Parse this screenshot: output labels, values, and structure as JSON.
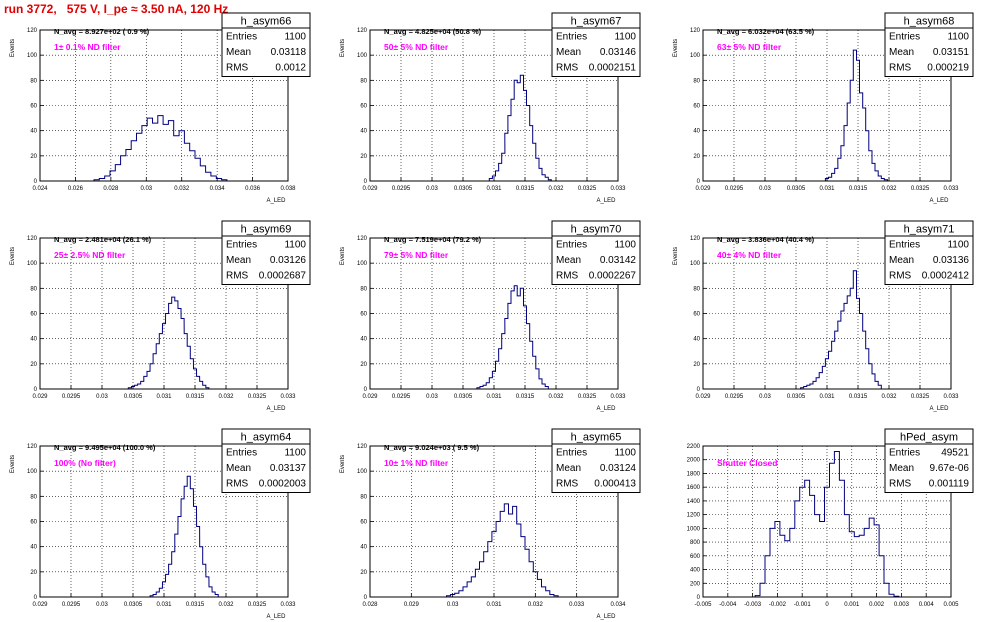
{
  "run_title": "run 3772,   575 V, I_pe ≈ 3.50 nA, 120 Hz",
  "colors": {
    "histogram_line": "#000080",
    "grid": "#000000",
    "title_red": "#e00000",
    "annotation_magenta": "#ff00ff"
  },
  "chart_data": [
    {
      "type": "histogram",
      "title": "h_asym66",
      "ylabel": "Events",
      "xlabel": "A_LED",
      "xlim": [
        0.024,
        0.038
      ],
      "ylim": [
        0,
        120
      ],
      "grid": true,
      "stats_box_position": "top-right",
      "x_ticks": [
        "0.024",
        "0.026",
        "0.028",
        "0.03",
        "0.032",
        "0.034",
        "0.036",
        "0.038"
      ],
      "y_ticks": [
        "0",
        "20",
        "40",
        "60",
        "80",
        "100",
        "120"
      ],
      "stats": {
        "Entries": "1100",
        "Mean": "0.03118",
        "RMS": "0.0012"
      },
      "n_avg_label": "N_avg = 8.927e+02 ( 0.9 %)",
      "filter_label": "1± 0.1% ND filter",
      "x": [
        0.0272,
        0.0275,
        0.0278,
        0.0281,
        0.0284,
        0.0287,
        0.029,
        0.0293,
        0.0296,
        0.0299,
        0.0302,
        0.0305,
        0.0308,
        0.0311,
        0.0314,
        0.0317,
        0.032,
        0.0323,
        0.0326,
        0.0329,
        0.0332,
        0.0335,
        0.0338,
        0.0341,
        0.0344
      ],
      "values": [
        1,
        2,
        4,
        8,
        13,
        20,
        25,
        32,
        38,
        44,
        50,
        46,
        52,
        45,
        48,
        36,
        40,
        30,
        24,
        18,
        12,
        7,
        4,
        2,
        1
      ]
    },
    {
      "type": "histogram",
      "title": "h_asym67",
      "ylabel": "Events",
      "xlabel": "A_LED",
      "xlim": [
        0.029,
        0.033
      ],
      "ylim": [
        0,
        120
      ],
      "grid": true,
      "stats_box_position": "top-right",
      "x_ticks": [
        "0.029",
        "0.0295",
        "0.03",
        "0.0305",
        "0.031",
        "0.0315",
        "0.032",
        "0.0325",
        "0.033"
      ],
      "y_ticks": [
        "0",
        "20",
        "40",
        "60",
        "80",
        "100",
        "120"
      ],
      "stats": {
        "Entries": "1100",
        "Mean": "0.03146",
        "RMS": "0.0002151"
      },
      "n_avg_label": "N_avg = 4.825e+04 (50.8 %)",
      "filter_label": "50± 5% ND filter",
      "x": [
        0.03095,
        0.031,
        0.03105,
        0.0311,
        0.03115,
        0.0312,
        0.03125,
        0.0313,
        0.03135,
        0.0314,
        0.03145,
        0.0315,
        0.03155,
        0.0316,
        0.03165,
        0.0317,
        0.03175,
        0.0318,
        0.03185,
        0.0319
      ],
      "values": [
        2,
        4,
        8,
        14,
        22,
        38,
        52,
        65,
        80,
        78,
        84,
        72,
        60,
        44,
        30,
        18,
        10,
        5,
        3,
        1
      ]
    },
    {
      "type": "histogram",
      "title": "h_asym68",
      "ylabel": "Events",
      "xlabel": "A_LED",
      "xlim": [
        0.029,
        0.033
      ],
      "ylim": [
        0,
        120
      ],
      "grid": true,
      "stats_box_position": "top-right",
      "x_ticks": [
        "0.029",
        "0.0295",
        "0.03",
        "0.0305",
        "0.031",
        "0.0315",
        "0.032",
        "0.0325",
        "0.033"
      ],
      "y_ticks": [
        "0",
        "20",
        "40",
        "60",
        "80",
        "100",
        "120"
      ],
      "stats": {
        "Entries": "1100",
        "Mean": "0.03151",
        "RMS": "0.000219"
      },
      "n_avg_label": "N_avg = 6.032e+04 (63.5 %)",
      "filter_label": "63± 5% ND filter",
      "x": [
        0.031,
        0.03105,
        0.0311,
        0.03115,
        0.0312,
        0.03125,
        0.0313,
        0.03135,
        0.0314,
        0.03145,
        0.0315,
        0.03155,
        0.0316,
        0.03165,
        0.0317,
        0.03175,
        0.0318,
        0.03185,
        0.0319,
        0.03195
      ],
      "values": [
        2,
        3,
        6,
        10,
        18,
        28,
        44,
        62,
        80,
        104,
        96,
        70,
        58,
        40,
        24,
        14,
        8,
        4,
        2,
        1
      ]
    },
    {
      "type": "histogram",
      "title": "h_asym69",
      "ylabel": "Events",
      "xlabel": "A_LED",
      "xlim": [
        0.029,
        0.033
      ],
      "ylim": [
        0,
        120
      ],
      "grid": true,
      "stats_box_position": "top-right",
      "x_ticks": [
        "0.029",
        "0.0295",
        "0.03",
        "0.0305",
        "0.031",
        "0.0315",
        "0.032",
        "0.0325",
        "0.033"
      ],
      "y_ticks": [
        "0",
        "20",
        "40",
        "60",
        "80",
        "100",
        "120"
      ],
      "stats": {
        "Entries": "1100",
        "Mean": "0.03126",
        "RMS": "0.0002687"
      },
      "n_avg_label": "N_avg = 2.481e+04 (26.1 %)",
      "filter_label": "25± 2.5% ND filter",
      "x": [
        0.03045,
        0.0305,
        0.03055,
        0.0306,
        0.03065,
        0.0307,
        0.03075,
        0.0308,
        0.03085,
        0.0309,
        0.03095,
        0.031,
        0.03105,
        0.0311,
        0.03115,
        0.0312,
        0.03125,
        0.0313,
        0.03135,
        0.0314,
        0.03145,
        0.0315,
        0.03155,
        0.0316,
        0.03165,
        0.0317
      ],
      "values": [
        1,
        2,
        3,
        4,
        6,
        10,
        14,
        20,
        28,
        36,
        44,
        52,
        60,
        68,
        73,
        70,
        64,
        56,
        44,
        34,
        24,
        16,
        10,
        6,
        3,
        1
      ]
    },
    {
      "type": "histogram",
      "title": "h_asym70",
      "ylabel": "Events",
      "xlabel": "A_LED",
      "xlim": [
        0.029,
        0.033
      ],
      "ylim": [
        0,
        120
      ],
      "grid": true,
      "stats_box_position": "top-right",
      "x_ticks": [
        "0.029",
        "0.0295",
        "0.03",
        "0.0305",
        "0.031",
        "0.0315",
        "0.032",
        "0.0325",
        "0.033"
      ],
      "y_ticks": [
        "0",
        "20",
        "40",
        "60",
        "80",
        "100",
        "120"
      ],
      "stats": {
        "Entries": "1100",
        "Mean": "0.03142",
        "RMS": "0.0002267"
      },
      "n_avg_label": "N_avg = 7.519e+04 (79.2 %)",
      "filter_label": "79± 5% ND filter",
      "x": [
        0.03075,
        0.0308,
        0.03085,
        0.0309,
        0.03095,
        0.031,
        0.03105,
        0.0311,
        0.03115,
        0.0312,
        0.03125,
        0.0313,
        0.03135,
        0.0314,
        0.03145,
        0.0315,
        0.03155,
        0.0316,
        0.03165,
        0.0317,
        0.03175,
        0.0318,
        0.03185
      ],
      "values": [
        1,
        2,
        3,
        5,
        9,
        14,
        22,
        32,
        44,
        56,
        68,
        78,
        82,
        74,
        80,
        66,
        52,
        38,
        26,
        16,
        8,
        4,
        2
      ]
    },
    {
      "type": "histogram",
      "title": "h_asym71",
      "ylabel": "Events",
      "xlabel": "A_LED",
      "xlim": [
        0.029,
        0.033
      ],
      "ylim": [
        0,
        120
      ],
      "grid": true,
      "stats_box_position": "top-right",
      "x_ticks": [
        "0.029",
        "0.0295",
        "0.03",
        "0.0305",
        "0.031",
        "0.0315",
        "0.032",
        "0.0325",
        "0.033"
      ],
      "y_ticks": [
        "0",
        "20",
        "40",
        "60",
        "80",
        "100",
        "120"
      ],
      "stats": {
        "Entries": "1100",
        "Mean": "0.03136",
        "RMS": "0.0002412"
      },
      "n_avg_label": "N_avg = 3.836e+04 (40.4 %)",
      "filter_label": "40± 4% ND filter",
      "x": [
        0.0306,
        0.03065,
        0.0307,
        0.03075,
        0.0308,
        0.03085,
        0.0309,
        0.03095,
        0.031,
        0.03105,
        0.0311,
        0.03115,
        0.0312,
        0.03125,
        0.0313,
        0.03135,
        0.0314,
        0.03145,
        0.0315,
        0.03155,
        0.0316,
        0.03165,
        0.0317,
        0.03175,
        0.0318,
        0.03185
      ],
      "values": [
        1,
        2,
        3,
        4,
        6,
        9,
        13,
        18,
        24,
        30,
        38,
        46,
        54,
        62,
        68,
        74,
        80,
        94,
        72,
        60,
        46,
        32,
        20,
        12,
        6,
        3
      ]
    },
    {
      "type": "histogram",
      "title": "h_asym64",
      "ylabel": "Events",
      "xlabel": "A_LED",
      "xlim": [
        0.029,
        0.033
      ],
      "ylim": [
        0,
        120
      ],
      "grid": true,
      "stats_box_position": "top-right",
      "x_ticks": [
        "0.029",
        "0.0295",
        "0.03",
        "0.0305",
        "0.031",
        "0.0315",
        "0.032",
        "0.0325",
        "0.033"
      ],
      "y_ticks": [
        "0",
        "20",
        "40",
        "60",
        "80",
        "100",
        "120"
      ],
      "stats": {
        "Entries": "1100",
        "Mean": "0.03137",
        "RMS": "0.0002003"
      },
      "n_avg_label": "N_avg = 9.495e+04 (100.0 %)",
      "filter_label": "100% (No filter)",
      "x": [
        0.0308,
        0.03085,
        0.0309,
        0.03095,
        0.031,
        0.03105,
        0.0311,
        0.03115,
        0.0312,
        0.03125,
        0.0313,
        0.03135,
        0.0314,
        0.03145,
        0.0315,
        0.03155,
        0.0316,
        0.03165,
        0.0317,
        0.03175,
        0.0318,
        0.03185
      ],
      "values": [
        1,
        2,
        4,
        7,
        12,
        18,
        26,
        36,
        50,
        64,
        78,
        88,
        96,
        86,
        72,
        56,
        40,
        26,
        16,
        8,
        4,
        2
      ]
    },
    {
      "type": "histogram",
      "title": "h_asym65",
      "ylabel": "Events",
      "xlabel": "A_LED",
      "xlim": [
        0.028,
        0.034
      ],
      "ylim": [
        0,
        120
      ],
      "grid": true,
      "stats_box_position": "top-right",
      "x_ticks": [
        "0.028",
        "0.029",
        "0.03",
        "0.031",
        "0.032",
        "0.033",
        "0.034"
      ],
      "y_ticks": [
        "0",
        "20",
        "40",
        "60",
        "80",
        "100",
        "120"
      ],
      "stats": {
        "Entries": "1100",
        "Mean": "0.03124",
        "RMS": "0.000413"
      },
      "n_avg_label": "N_avg = 9.024e+03 ( 9.5 %)",
      "filter_label": "10± 1% ND filter",
      "x": [
        0.0299,
        0.03,
        0.0301,
        0.0302,
        0.0303,
        0.0304,
        0.0305,
        0.0306,
        0.0307,
        0.0308,
        0.0309,
        0.031,
        0.0311,
        0.0312,
        0.0313,
        0.0314,
        0.0315,
        0.0316,
        0.0317,
        0.0318,
        0.0319,
        0.032,
        0.0321,
        0.0322,
        0.0323,
        0.0324,
        0.0325
      ],
      "values": [
        1,
        2,
        3,
        5,
        8,
        12,
        16,
        22,
        28,
        36,
        44,
        52,
        60,
        68,
        74,
        66,
        72,
        58,
        48,
        38,
        28,
        20,
        14,
        8,
        5,
        2,
        1
      ]
    },
    {
      "type": "histogram",
      "title": "hPed_asym",
      "ylabel": "",
      "xlabel": "",
      "xlim": [
        -0.005,
        0.005
      ],
      "ylim": [
        0,
        2200
      ],
      "grid": true,
      "stats_box_position": "top-right",
      "x_ticks": [
        "-0.005",
        "-0.004",
        "-0.003",
        "-0.002",
        "-0.001",
        "0",
        "0.001",
        "0.002",
        "0.003",
        "0.004",
        "0.005"
      ],
      "y_ticks": [
        "0",
        "200",
        "400",
        "600",
        "800",
        "1000",
        "1200",
        "1400",
        "1600",
        "1800",
        "2000",
        "2200"
      ],
      "stats": {
        "Entries": "49521",
        "Mean": "9.67e-06",
        "RMS": "0.001119"
      },
      "n_avg_label": "",
      "filter_label": "Shutter Closed",
      "x": [
        -0.0028,
        -0.0026,
        -0.0024,
        -0.0022,
        -0.002,
        -0.0018,
        -0.0016,
        -0.0014,
        -0.0012,
        -0.001,
        -0.0008,
        -0.0006,
        -0.0004,
        -0.0002,
        0,
        0.0002,
        0.0004,
        0.0006,
        0.0008,
        0.001,
        0.0012,
        0.0014,
        0.0016,
        0.0018,
        0.002,
        0.0022,
        0.0024,
        0.0026,
        0.0028
      ],
      "values": [
        20,
        200,
        600,
        1000,
        1100,
        900,
        820,
        1000,
        1400,
        1600,
        1700,
        1480,
        1200,
        1100,
        1600,
        1950,
        2120,
        1700,
        1200,
        950,
        880,
        900,
        1000,
        1150,
        1050,
        600,
        200,
        40,
        10
      ]
    }
  ]
}
